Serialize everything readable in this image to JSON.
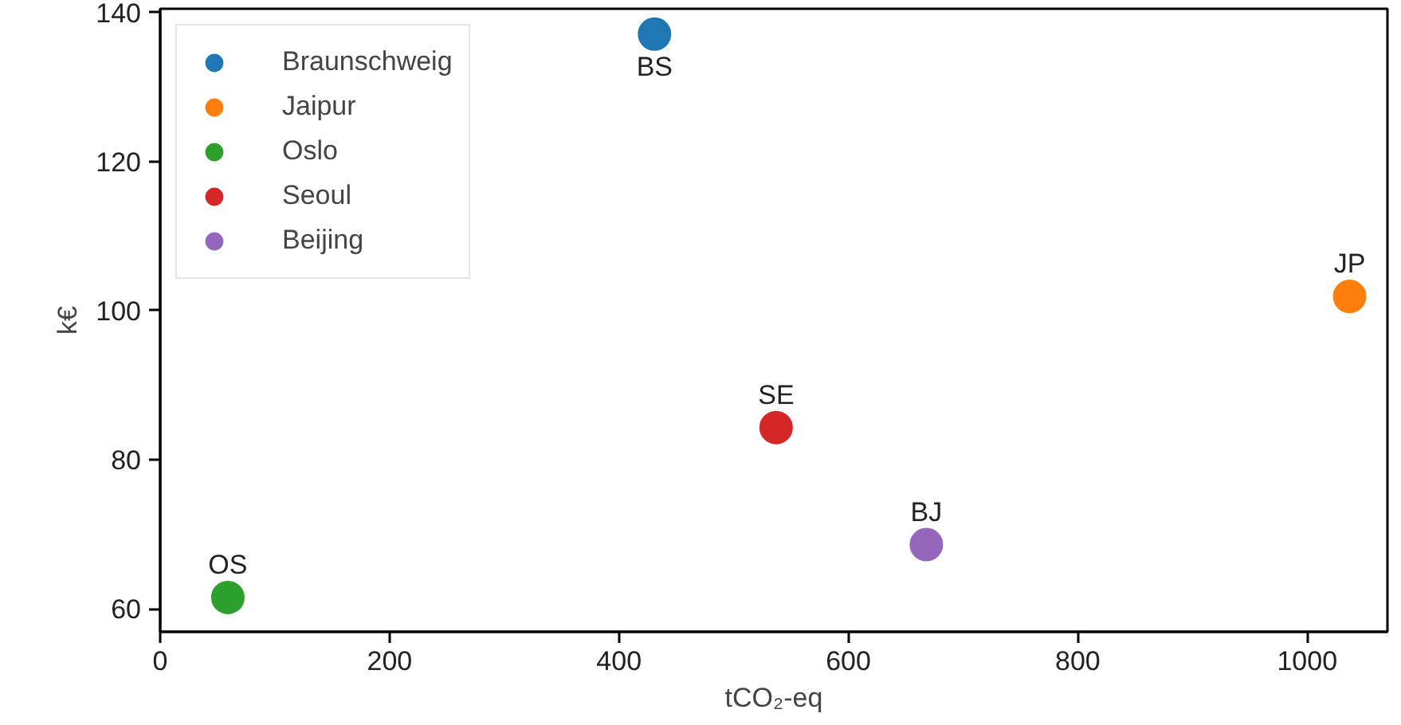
{
  "chart_data": {
    "type": "scatter",
    "xlabel": "tCO₂-eq",
    "ylabel": "k€",
    "xlim": [
      0,
      1070
    ],
    "ylim": [
      56.9,
      140.5
    ],
    "xticks": [
      0,
      200,
      400,
      600,
      800,
      1000
    ],
    "yticks": [
      60,
      80,
      100,
      120,
      140
    ],
    "grid": false,
    "legend": "top left",
    "marker": "circle",
    "series": [
      {
        "name": "Braunschweig",
        "color": "#1f77b4",
        "x": [
          431
        ],
        "values": [
          137.1
        ]
      },
      {
        "name": "Jaipur",
        "color": "#ff7f0e",
        "x": [
          1037
        ],
        "values": [
          101.9
        ]
      },
      {
        "name": "Oslo",
        "color": "#2ca02c",
        "x": [
          59
        ],
        "values": [
          61.5
        ]
      },
      {
        "name": "Seoul",
        "color": "#d62728",
        "x": [
          537
        ],
        "values": [
          84.3
        ]
      },
      {
        "name": "Beijing",
        "color": "#9467bd",
        "x": [
          668
        ],
        "values": [
          68.6
        ]
      }
    ],
    "annotations": [
      {
        "text": "BS",
        "x": 431,
        "y": 137.1
      },
      {
        "text": "JP",
        "x": 1037,
        "y": 101.9
      },
      {
        "text": "OS",
        "x": 59,
        "y": 61.5
      },
      {
        "text": "SE",
        "x": 537,
        "y": 84.3
      },
      {
        "text": "BJ",
        "x": 668,
        "y": 68.6
      }
    ]
  }
}
